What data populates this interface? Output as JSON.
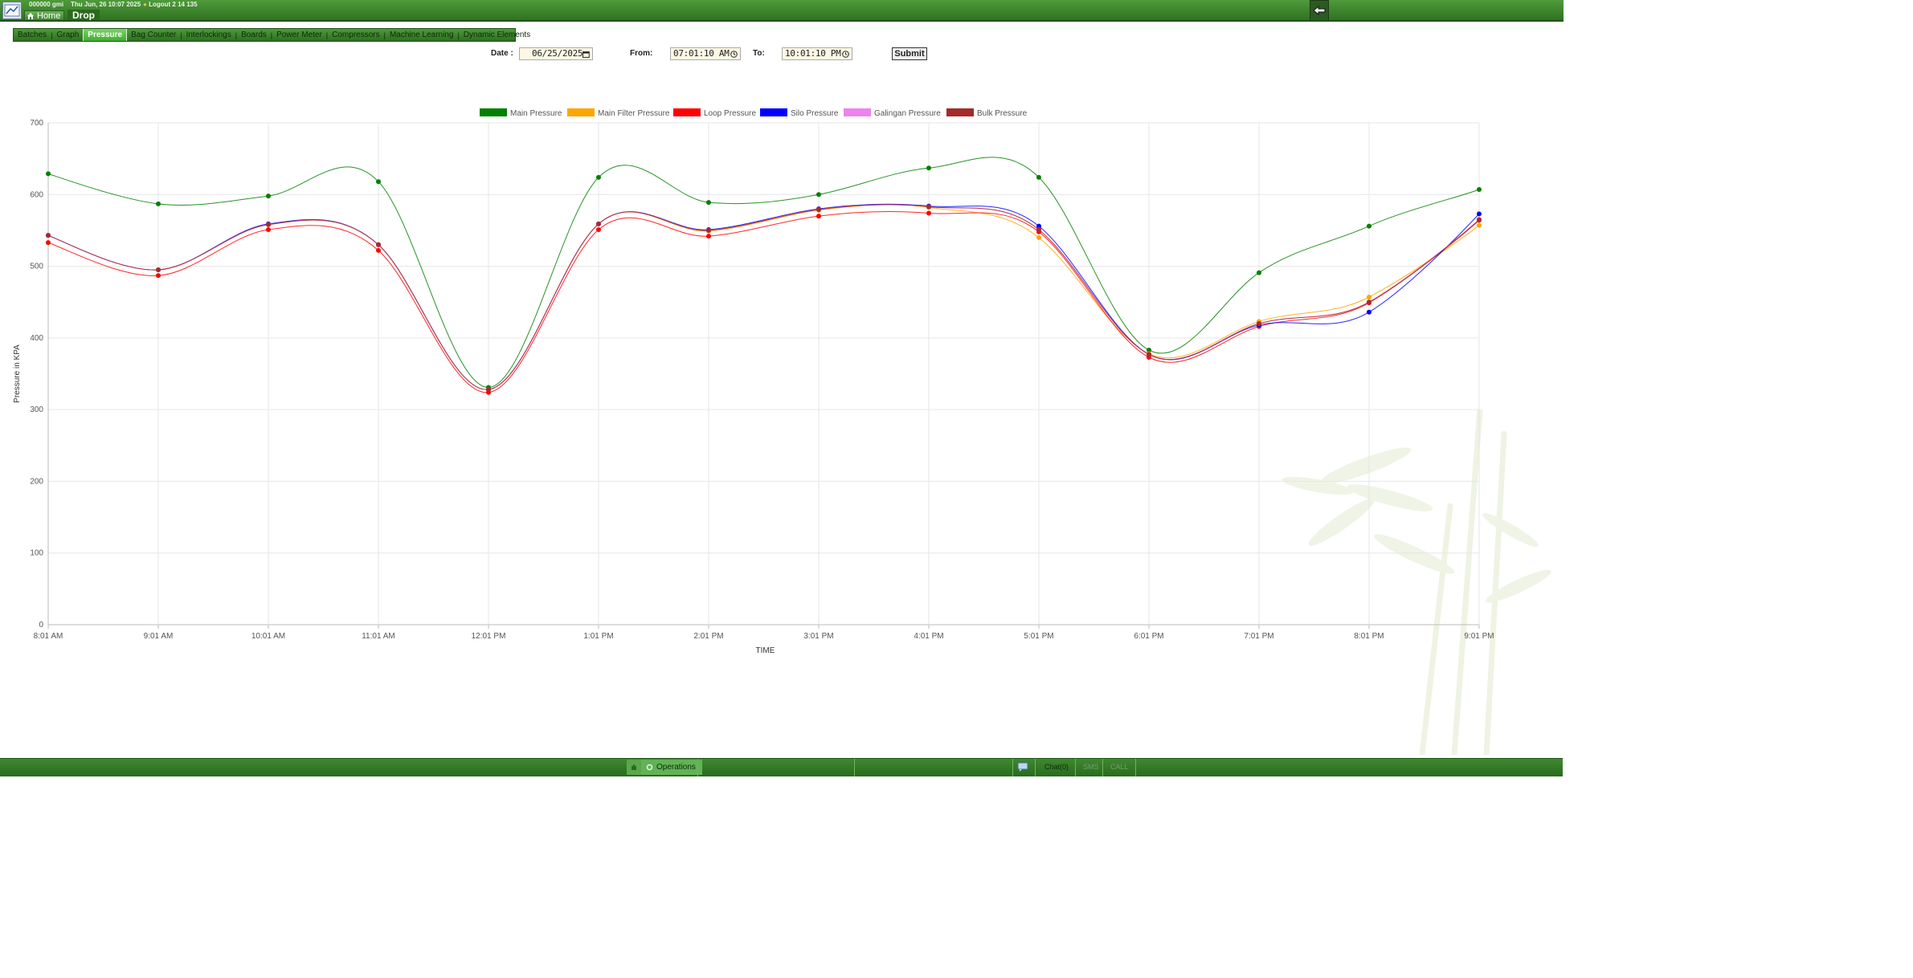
{
  "header": {
    "user_info": "000000 gmi",
    "datetime": "Thu Jun, 26 10:07 2025",
    "logout": "Logout 2 14 135",
    "home_label": "Home",
    "page_title": "Drop"
  },
  "tabs": [
    {
      "label": "Batches",
      "active": false
    },
    {
      "label": "Graph",
      "active": false
    },
    {
      "label": "Pressure",
      "active": true
    },
    {
      "label": "Bag Counter",
      "active": false
    },
    {
      "label": "Interlockings",
      "active": false
    },
    {
      "label": "Boards",
      "active": false
    },
    {
      "label": "Power Meter",
      "active": false
    },
    {
      "label": "Compressors",
      "active": false
    },
    {
      "label": "Machine Learning",
      "active": false
    },
    {
      "label": "Dynamic Elements",
      "active": false
    }
  ],
  "filters": {
    "date_label": "Date :",
    "date_value": "06/25/2025",
    "from_label": "From:",
    "from_value": "07:01:10 AM",
    "to_label": "To:",
    "to_value": "10:01:10 PM",
    "submit_label": "Submit"
  },
  "chart_data": {
    "type": "line",
    "xlabel": "TIME",
    "ylabel": "Pressure in KPA",
    "ylim": [
      0,
      700
    ],
    "yticks": [
      0,
      100,
      200,
      300,
      400,
      500,
      600,
      700
    ],
    "grid": true,
    "legend_position": "top",
    "categories": [
      "8:01 AM",
      "9:01 AM",
      "10:01 AM",
      "11:01 AM",
      "12:01 PM",
      "1:01 PM",
      "2:01 PM",
      "3:01 PM",
      "4:01 PM",
      "5:01 PM",
      "6:01 PM",
      "7:01 PM",
      "8:01 PM",
      "9:01 PM"
    ],
    "series": [
      {
        "name": "Main Pressure",
        "color": "#008000",
        "values": [
          629,
          587,
          598,
          618,
          331,
          624,
          589,
          600,
          637,
          624,
          383,
          491,
          556,
          607
        ]
      },
      {
        "name": "Main Filter Pressure",
        "color": "#ffa500",
        "values": [
          543,
          495,
          558,
          530,
          328,
          559,
          549,
          578,
          582,
          540,
          378,
          423,
          457,
          557
        ]
      },
      {
        "name": "Loop Pressure",
        "color": "#ff0000",
        "values": [
          533,
          487,
          551,
          522,
          324,
          551,
          542,
          570,
          574,
          548,
          373,
          416,
          449,
          564
        ]
      },
      {
        "name": "Silo Pressure",
        "color": "#0000ff",
        "values": [
          543,
          495,
          559,
          530,
          328,
          559,
          551,
          580,
          584,
          556,
          377,
          418,
          436,
          573
        ]
      },
      {
        "name": "Galingan Pressure",
        "color": "#ee82ee",
        "values": [
          543,
          495,
          558,
          530,
          328,
          559,
          550,
          579,
          583,
          551,
          377,
          420,
          450,
          565
        ]
      },
      {
        "name": "Bulk Pressure",
        "color": "#a52a2a",
        "values": [
          543,
          495,
          558,
          530,
          328,
          559,
          550,
          579,
          583,
          551,
          377,
          420,
          450,
          565
        ]
      }
    ]
  },
  "statusbar": {
    "operations_label": "Operations",
    "chat_label": "Chat(0)",
    "faded_1": "SMS",
    "faded_2": "CALL"
  }
}
